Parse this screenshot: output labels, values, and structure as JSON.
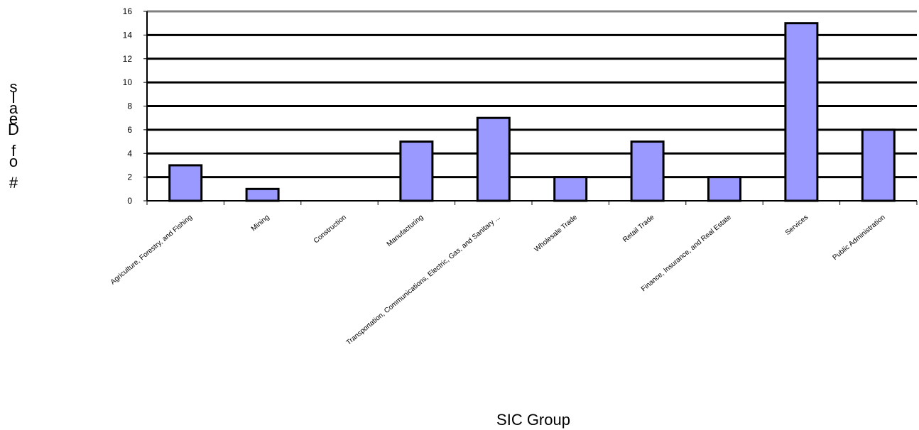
{
  "chart_data": {
    "type": "bar",
    "title": "",
    "xlabel": "SIC Group",
    "ylabel": "# of Deals",
    "ylim": [
      0,
      16
    ],
    "yticks": [
      0,
      2,
      4,
      6,
      8,
      10,
      12,
      14,
      16
    ],
    "grid": true,
    "categories": [
      "Agriculture, Forestry, and Fishing",
      "Mining",
      "Construction",
      "Manufacturing",
      "Transportation, Communications, Electric, Gas, and Sanitary ...",
      "Wholesale Trade",
      "Retail Trade",
      "Finance, Insurance, and Real Estate",
      "Services",
      "Public Administration"
    ],
    "values": [
      3,
      1,
      0,
      5,
      7,
      2,
      5,
      2,
      15,
      6
    ],
    "colors": {
      "bar_fill": "#9999ff",
      "bar_stroke": "#000000",
      "grid": "#000000",
      "top_border": "#808080"
    }
  }
}
